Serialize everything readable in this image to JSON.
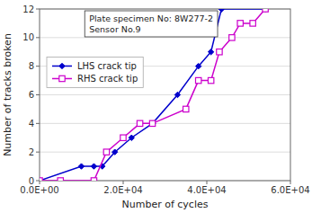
{
  "chart_data": {
    "type": "line",
    "x_label": "Number of cycles",
    "y_label": "Number of tracks broken",
    "annotation": "Plate specimen No: 8W277-2\nSensor No.9",
    "series": [
      {
        "name": "LHS crack tip",
        "color": "#0000cc",
        "marker": "diamond",
        "line_style": "solid",
        "x": [
          0,
          0,
          10000,
          13000,
          15000,
          18000,
          22000,
          27000,
          27000,
          33000,
          38000,
          41000,
          43500,
          43500,
          54000
        ],
        "values": [
          0,
          0,
          1,
          1,
          1,
          2,
          3,
          4,
          4,
          6,
          8,
          9,
          12,
          12,
          12
        ]
      },
      {
        "name": "RHS crack tip",
        "color": "#cc00cc",
        "marker": "open-square",
        "line_style": "solid",
        "x": [
          0,
          5000,
          13000,
          16000,
          20000,
          24000,
          27000,
          35000,
          38000,
          41000,
          43000,
          46000,
          48000,
          51000,
          54000
        ],
        "values": [
          0,
          0,
          0,
          2,
          3,
          4,
          4,
          5,
          7,
          7,
          9,
          10,
          11,
          11,
          12
        ]
      }
    ],
    "xlim": [
      0,
      60000
    ],
    "xticks": [
      {
        "value": 0,
        "label": "0.0E+00"
      },
      {
        "value": 20000,
        "label": "2.0E+04"
      },
      {
        "value": 40000,
        "label": "4.0E+04"
      },
      {
        "value": 60000,
        "label": "6.0E+04"
      }
    ],
    "ylim": [
      0,
      12
    ],
    "yticks": [
      0,
      2,
      4,
      6,
      8,
      10,
      12
    ],
    "grid": "y",
    "legend": "left"
  }
}
